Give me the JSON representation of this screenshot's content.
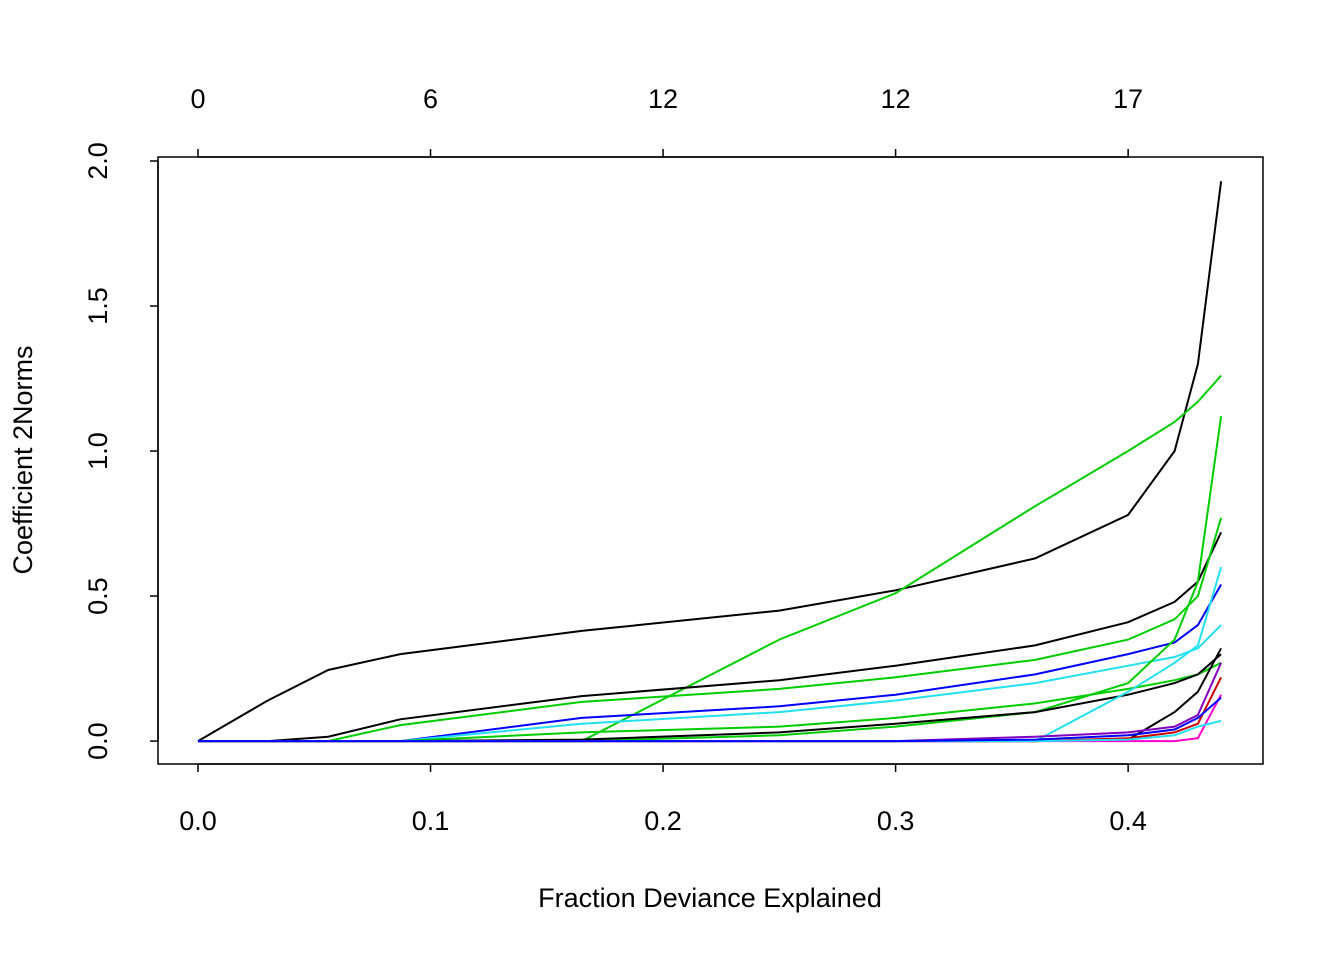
{
  "chart_data": {
    "type": "line",
    "xlabel": "Fraction Deviance Explained",
    "ylabel": "Coefficient 2Norms",
    "xlim": [
      -0.0172,
      0.458
    ],
    "ylim": [
      -0.079,
      2.0138
    ],
    "xticks": [
      {
        "value": 0,
        "label": "0.0"
      },
      {
        "value": 0.1,
        "label": "0.1"
      },
      {
        "value": 0.2,
        "label": "0.2"
      },
      {
        "value": 0.3,
        "label": "0.3"
      },
      {
        "value": 0.4,
        "label": "0.4"
      }
    ],
    "x2ticks": [
      {
        "value": 0,
        "label": "0"
      },
      {
        "value": 0.1,
        "label": "6"
      },
      {
        "value": 0.2,
        "label": "12"
      },
      {
        "value": 0.3,
        "label": "12"
      },
      {
        "value": 0.4,
        "label": "17"
      }
    ],
    "yticks": [
      {
        "value": 0,
        "label": "0.0"
      },
      {
        "value": 0.5,
        "label": "0.5"
      },
      {
        "value": 1,
        "label": "1.0"
      },
      {
        "value": 1.5,
        "label": "1.5"
      },
      {
        "value": 2,
        "label": "2.0"
      }
    ],
    "x": [
      0,
      0.03,
      0.056,
      0.087,
      0.165,
      0.25,
      0.3,
      0.36,
      0.4,
      0.42,
      0.43,
      0.44
    ],
    "series": [
      {
        "color": "#000000",
        "values": [
          0,
          0.14,
          0.245,
          0.3,
          0.38,
          0.45,
          0.52,
          0.63,
          0.78,
          1.0,
          1.3,
          1.93
        ]
      },
      {
        "color": "#00CD00",
        "values": [
          0,
          0,
          0,
          0,
          0,
          0.35,
          0.51,
          0.81,
          1.0,
          1.1,
          1.17,
          1.26
        ]
      },
      {
        "color": "#000000",
        "values": [
          0,
          0,
          0.015,
          0.075,
          0.155,
          0.21,
          0.26,
          0.33,
          0.41,
          0.48,
          0.55,
          0.72
        ]
      },
      {
        "color": "#00CD00",
        "values": [
          0,
          0,
          0,
          0.055,
          0.135,
          0.18,
          0.22,
          0.28,
          0.35,
          0.42,
          0.5,
          0.77
        ]
      },
      {
        "color": "#0000FF",
        "values": [
          0,
          0,
          0,
          0,
          0.08,
          0.12,
          0.16,
          0.23,
          0.3,
          0.34,
          0.4,
          0.54
        ]
      },
      {
        "color": "#22E0F0",
        "values": [
          0,
          0,
          0,
          0,
          0.06,
          0.1,
          0.14,
          0.2,
          0.26,
          0.29,
          0.32,
          0.4
        ]
      },
      {
        "color": "#00CD00",
        "values": [
          0,
          0,
          0,
          0,
          0,
          0.02,
          0.05,
          0.1,
          0.2,
          0.35,
          0.55,
          1.12
        ]
      },
      {
        "color": "#00CD00",
        "values": [
          0,
          0,
          0,
          0,
          0.03,
          0.05,
          0.08,
          0.13,
          0.18,
          0.21,
          0.23,
          0.27
        ]
      },
      {
        "color": "#000000",
        "values": [
          0,
          0,
          0,
          0,
          0.005,
          0.03,
          0.06,
          0.1,
          0.16,
          0.2,
          0.23,
          0.3
        ]
      },
      {
        "color": "#22E0F0",
        "values": [
          0,
          0,
          0,
          0,
          0,
          0,
          0,
          0,
          0.17,
          0.27,
          0.33,
          0.6
        ]
      },
      {
        "color": "#000000",
        "values": [
          0,
          0,
          0,
          0,
          0,
          0,
          0,
          0,
          0.005,
          0.1,
          0.17,
          0.32
        ]
      },
      {
        "color": "#8000C0",
        "values": [
          0,
          0,
          0,
          0,
          0,
          0,
          0,
          0.015,
          0.03,
          0.05,
          0.09,
          0.27
        ]
      },
      {
        "color": "#CD0000",
        "values": [
          0,
          0,
          0,
          0,
          0,
          0,
          0,
          0,
          0.01,
          0.03,
          0.06,
          0.22
        ]
      },
      {
        "color": "#FF00CC",
        "values": [
          0,
          0,
          0,
          0,
          0,
          0,
          0,
          0,
          0,
          0,
          0.01,
          0.16
        ]
      },
      {
        "color": "#22E0F0",
        "values": [
          0,
          0,
          0,
          0,
          0,
          0,
          0,
          0,
          0.005,
          0.02,
          0.05,
          0.07
        ]
      },
      {
        "color": "#0000FF",
        "values": [
          0,
          0,
          0,
          0,
          0,
          0,
          0,
          0.005,
          0.02,
          0.04,
          0.08,
          0.15
        ]
      }
    ]
  }
}
